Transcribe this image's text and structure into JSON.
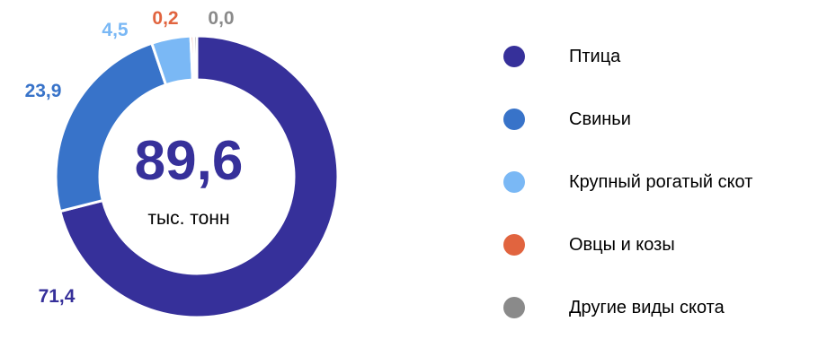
{
  "chart_data": {
    "type": "donut",
    "center": {
      "value": "89,6",
      "unit": "тыс. тонн"
    },
    "series": [
      {
        "name": "Птица",
        "value": 71.4,
        "label": "71,4",
        "color": "#36309a"
      },
      {
        "name": "Свиньи",
        "value": 23.9,
        "label": "23,9",
        "color": "#3873c9"
      },
      {
        "name": "Крупный рогатый скот",
        "value": 4.5,
        "label": "4,5",
        "color": "#7ab8f5"
      },
      {
        "name": "Овцы и козы",
        "value": 0.2,
        "label": "0,2",
        "color": "#e1643f"
      },
      {
        "name": "Другие виды скота",
        "value": 0.0,
        "label": "0,0",
        "color": "#8a8a8a"
      }
    ],
    "legend_position": "right"
  }
}
